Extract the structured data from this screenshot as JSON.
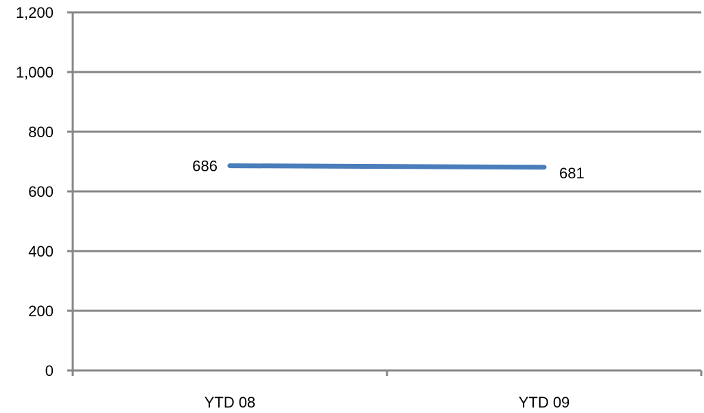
{
  "chart_data": {
    "type": "line",
    "categories": [
      "YTD 08",
      "YTD 09"
    ],
    "series": [
      {
        "values": [
          686,
          681
        ]
      }
    ],
    "data_labels": [
      "686",
      "681"
    ],
    "y_ticks": [
      0,
      200,
      400,
      600,
      800,
      1000,
      1200
    ],
    "y_tick_labels": [
      "0",
      "200",
      "400",
      "600",
      "800",
      "1,000",
      "1,200"
    ],
    "ylim": [
      0,
      1200
    ],
    "grid": true,
    "legend": "none",
    "colors": {
      "line": "#4a7ebb",
      "grid": "#868686",
      "axis": "#868686",
      "text": "#000000"
    }
  }
}
